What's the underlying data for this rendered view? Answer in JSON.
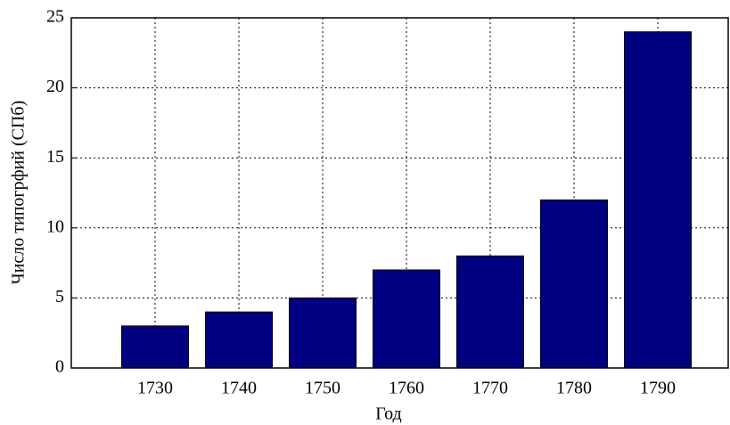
{
  "chart_data": {
    "type": "bar",
    "categories": [
      "1730",
      "1740",
      "1750",
      "1760",
      "1770",
      "1780",
      "1790"
    ],
    "values": [
      3,
      4,
      5,
      7,
      8,
      12,
      24
    ],
    "color": "#000080",
    "xlabel": "Год",
    "ylabel": "Число типогрфий (СПб)",
    "ylim": [
      0,
      25
    ],
    "yticks": [
      0,
      5,
      10,
      15,
      20,
      25
    ],
    "grid": true
  }
}
